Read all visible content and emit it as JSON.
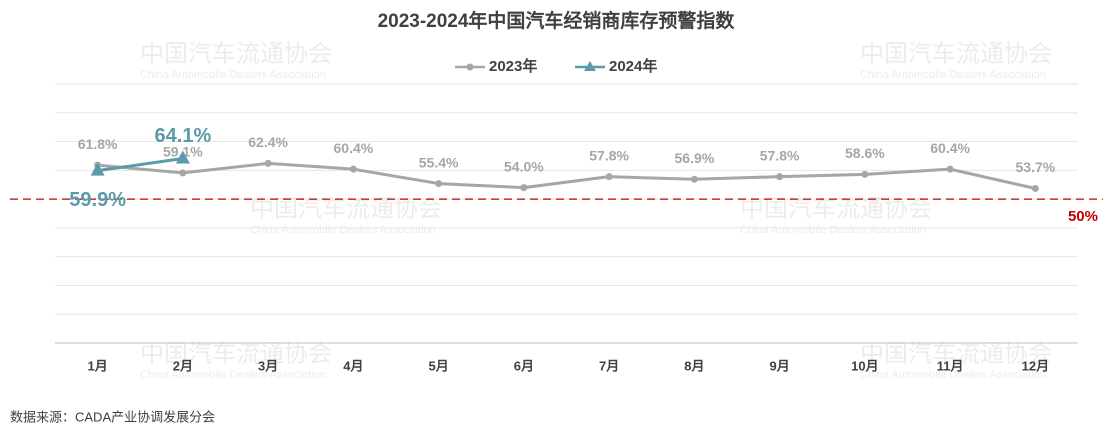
{
  "chart_data": {
    "type": "line",
    "title": "2023-2024年中国汽车经销商库存预警指数",
    "categories": [
      "1月",
      "2月",
      "3月",
      "4月",
      "5月",
      "6月",
      "7月",
      "8月",
      "9月",
      "10月",
      "11月",
      "12月"
    ],
    "series": [
      {
        "name": "2023年",
        "color": "#a6a6a6",
        "marker": "circle",
        "values": [
          61.8,
          59.1,
          62.4,
          60.4,
          55.4,
          54.0,
          57.8,
          56.9,
          57.8,
          58.6,
          60.4,
          53.7
        ],
        "value_labels": [
          "61.8%",
          "59.1%",
          "62.4%",
          "60.4%",
          "55.4%",
          "54.0%",
          "57.8%",
          "56.9%",
          "57.8%",
          "58.6%",
          "60.4%",
          "53.7%"
        ]
      },
      {
        "name": "2024年",
        "color": "#5b9aa8",
        "marker": "triangle",
        "values": [
          59.9,
          64.1,
          null,
          null,
          null,
          null,
          null,
          null,
          null,
          null,
          null,
          null
        ],
        "value_labels": [
          "59.9%",
          "64.1%",
          null,
          null,
          null,
          null,
          null,
          null,
          null,
          null,
          null,
          null
        ]
      }
    ],
    "ylim": [
      0,
      90
    ],
    "yticks": [
      0,
      10,
      20,
      30,
      40,
      50,
      60,
      70,
      80,
      90
    ],
    "grid": true,
    "threshold": {
      "value": 50,
      "label": "50%",
      "color": "#c00000"
    },
    "legend": "top",
    "watermark": {
      "cn": "中国汽车流通协会",
      "en": "China Automobile Dealers Association"
    },
    "source": "数据来源：CADA产业协调发展分会"
  }
}
